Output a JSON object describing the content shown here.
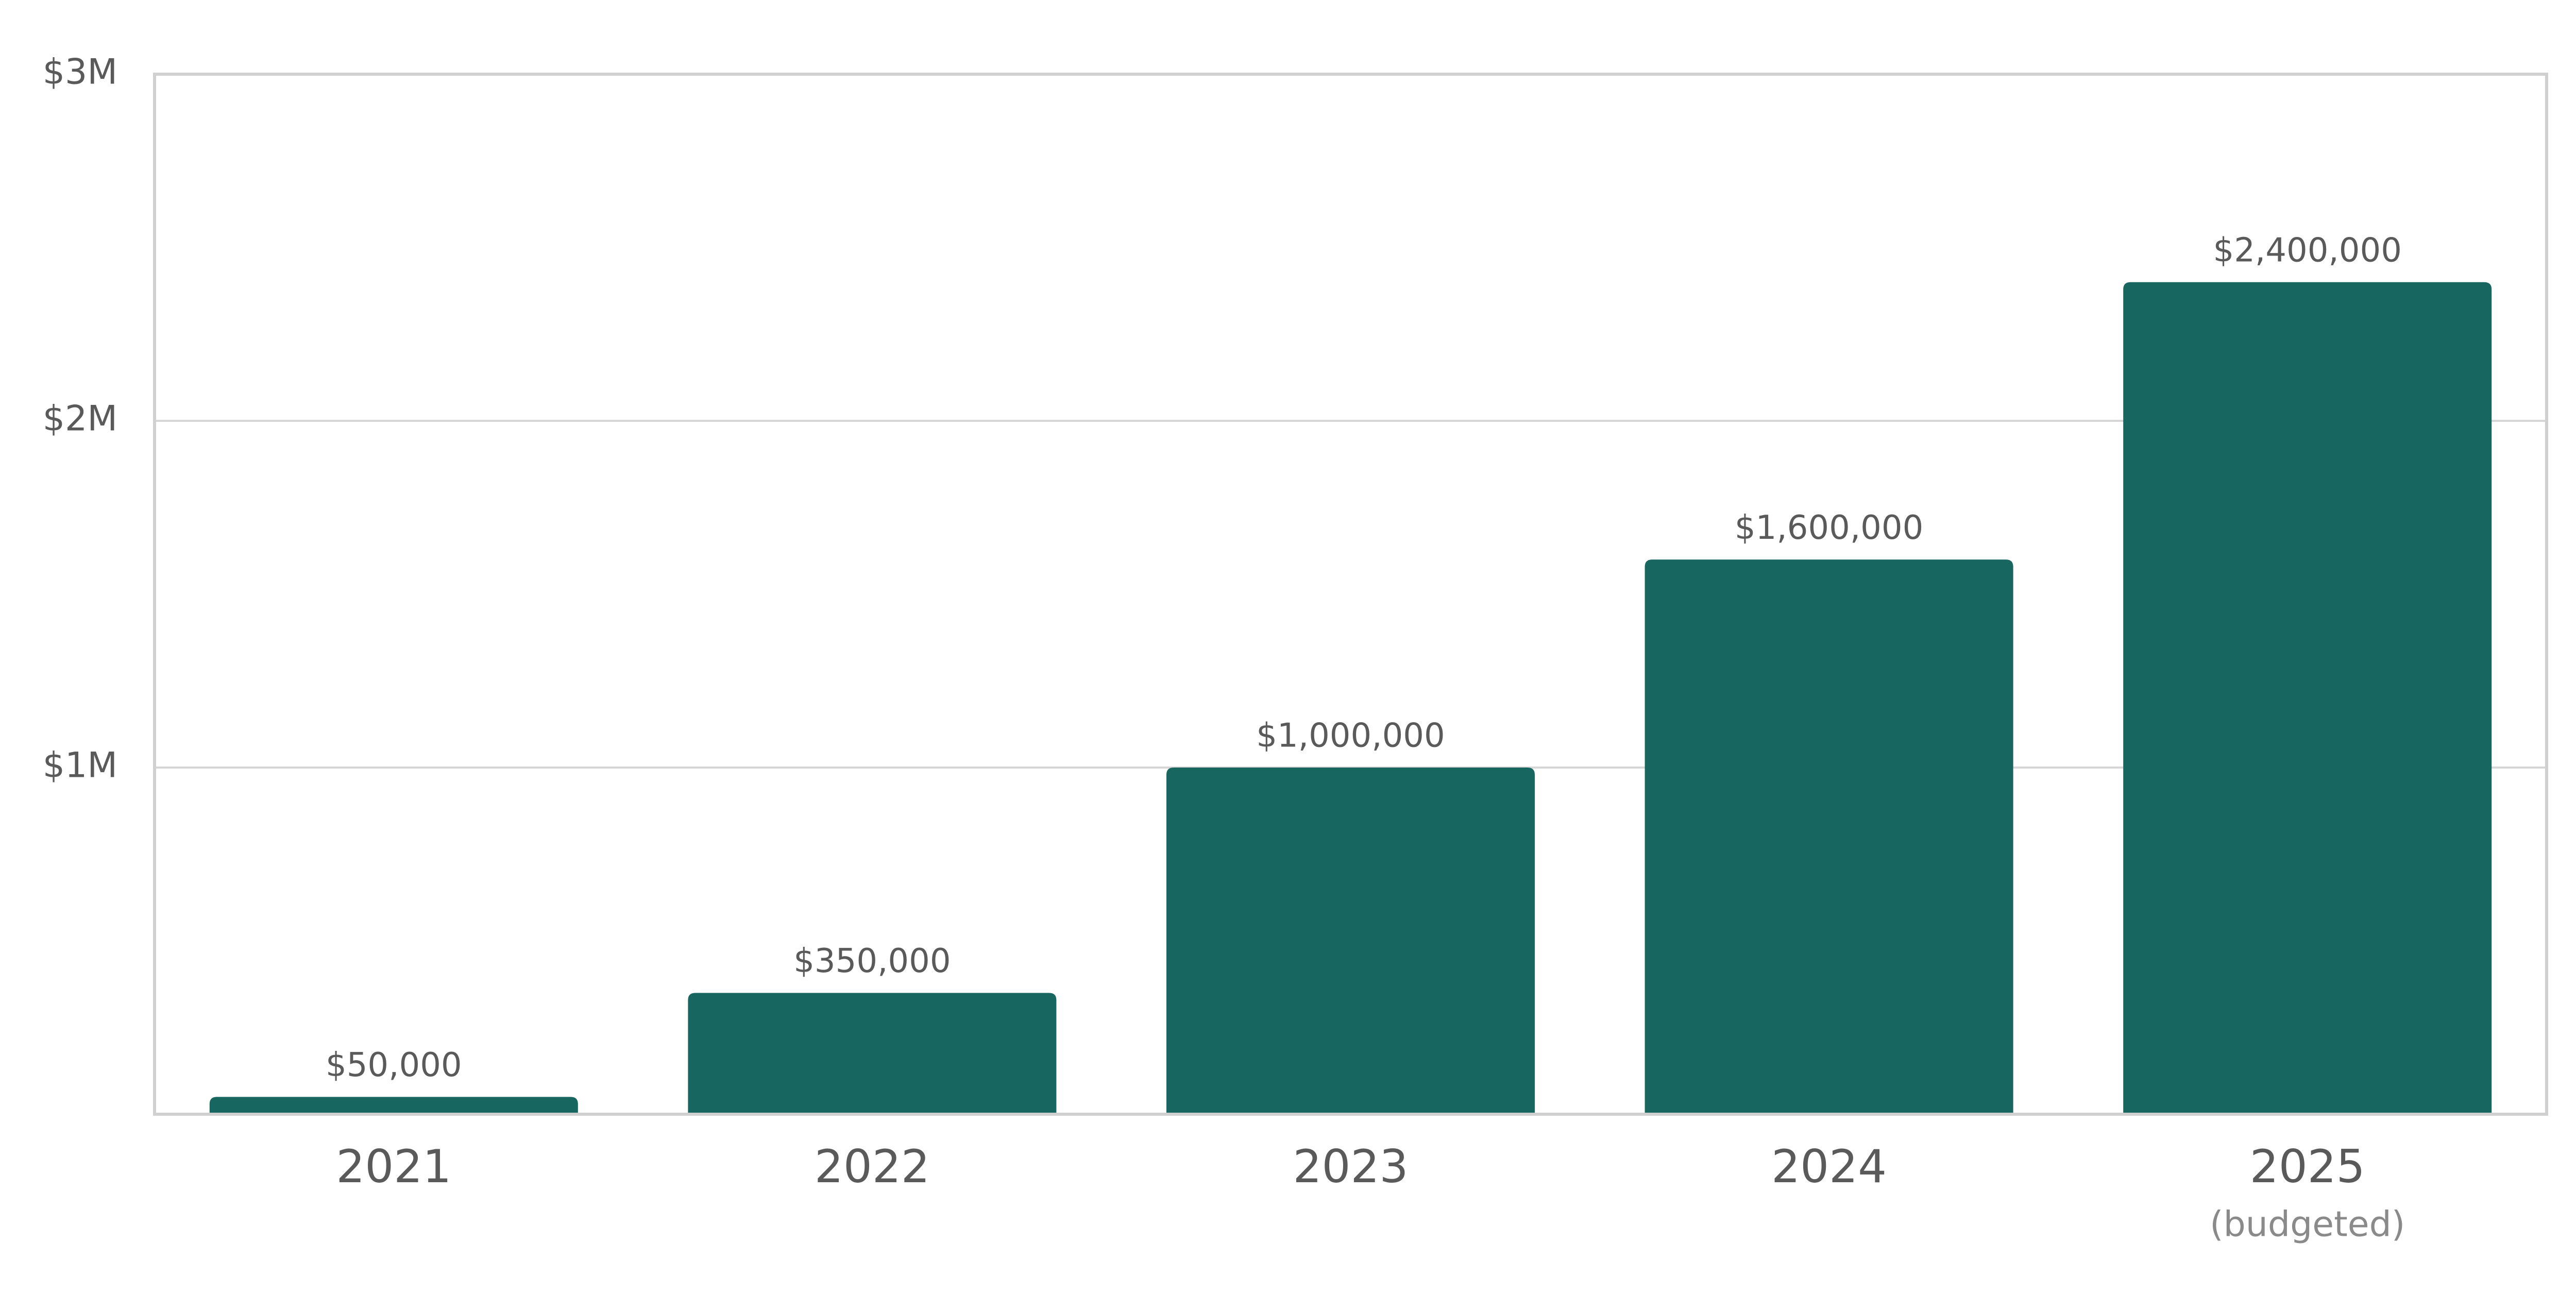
{
  "chart_data": {
    "type": "bar",
    "categories": [
      "2021",
      "2022",
      "2023",
      "2024",
      "2025"
    ],
    "annotation": "(budgeted)",
    "values": [
      50000,
      350000,
      1000000,
      1600000,
      2400000
    ],
    "value_labels": [
      "$50,000",
      "$350,000",
      "$1,000,000",
      "$1,600,000",
      "$2,400,000"
    ],
    "color": "#17665f",
    "ylim": [
      0,
      3000000
    ],
    "yticks": [
      {
        "value": 1000000,
        "label": "$1M"
      },
      {
        "value": 2000000,
        "label": "$2M"
      },
      {
        "value": 3000000,
        "label": "$3M"
      }
    ],
    "grid": true
  }
}
